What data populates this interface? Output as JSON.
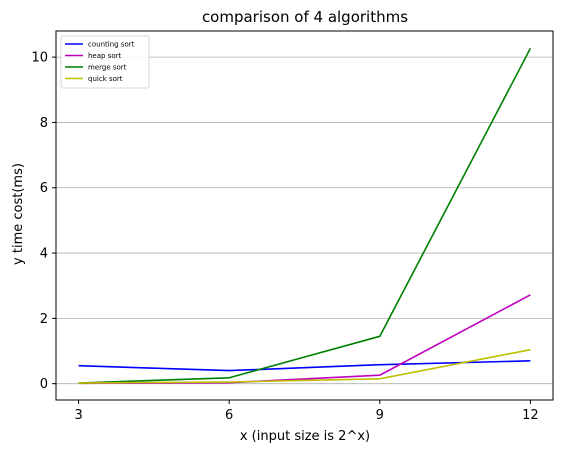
{
  "chart_data": {
    "type": "line",
    "title": "comparison of 4 algorithms",
    "xlabel": "x (input size is 2^x)",
    "ylabel": "y time cost(ms)",
    "x": [
      3,
      6,
      9,
      12
    ],
    "xticks": [
      "3",
      "6",
      "9",
      "12"
    ],
    "yticks": [
      "0",
      "2",
      "4",
      "6",
      "8",
      "10"
    ],
    "xlim": [
      2.55,
      12.45
    ],
    "ylim": [
      -0.5,
      10.8
    ],
    "grid": "horizontal",
    "legend_position": "top-left",
    "series": [
      {
        "name": "counting sort",
        "color": "#0000ff",
        "values": [
          0.55,
          0.4,
          0.58,
          0.7
        ]
      },
      {
        "name": "heap sort",
        "color": "#bf00bf",
        "values": [
          0.01,
          0.03,
          0.26,
          2.72
        ]
      },
      {
        "name": "merge sort",
        "color": "#008000",
        "values": [
          0.02,
          0.18,
          1.45,
          10.27
        ]
      },
      {
        "name": "quick sort",
        "color": "#bfbf00",
        "values": [
          0.02,
          0.05,
          0.15,
          1.04
        ]
      }
    ]
  }
}
